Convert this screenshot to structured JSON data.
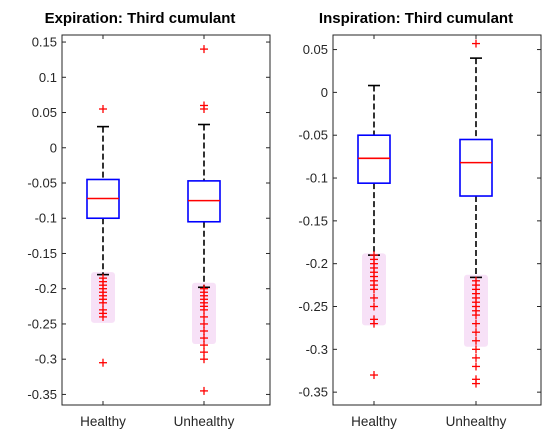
{
  "chart_data": [
    {
      "type": "boxplot",
      "title": "Expiration:  Third cumulant",
      "categories": [
        "Healthy",
        "Unhealthy"
      ],
      "ylim": [
        -0.365,
        0.16
      ],
      "yticks": [
        0.15,
        0.1,
        0.05,
        0,
        -0.05,
        -0.1,
        -0.15,
        -0.2,
        -0.25,
        -0.3,
        -0.35
      ],
      "ytick_labels": [
        "0.15",
        "0.1",
        "0.05",
        "0",
        "-0.05",
        "-0.1",
        "-0.15",
        "-0.2",
        "-0.25",
        "-0.3",
        "-0.35"
      ],
      "boxes": [
        {
          "category": "Healthy",
          "whisker_high": 0.03,
          "q3": -0.045,
          "median": -0.072,
          "q1": -0.1,
          "whisker_low": -0.18,
          "outliers": [
            0.055,
            -0.185,
            -0.19,
            -0.195,
            -0.2,
            -0.205,
            -0.21,
            -0.215,
            -0.22,
            -0.23,
            -0.235,
            -0.24,
            -0.305
          ]
        },
        {
          "category": "Unhealthy",
          "whisker_high": 0.033,
          "q3": -0.047,
          "median": -0.075,
          "q1": -0.105,
          "whisker_low": -0.198,
          "outliers": [
            0.14,
            0.06,
            0.055,
            -0.2,
            -0.205,
            -0.21,
            -0.215,
            -0.22,
            -0.225,
            -0.23,
            -0.24,
            -0.25,
            -0.26,
            -0.27,
            -0.28,
            -0.29,
            -0.3,
            -0.345
          ]
        }
      ],
      "colors": {
        "box": "#0000ff",
        "median": "#ff0000",
        "whisker": "#000000",
        "outlier": "#ff0000",
        "outlier_glow": "#f0c8f0"
      }
    },
    {
      "type": "boxplot",
      "title": "Inspiration:  Third cumulant",
      "categories": [
        "Healthy",
        "Unhealthy"
      ],
      "ylim": [
        -0.365,
        0.067
      ],
      "yticks": [
        0.05,
        0,
        -0.05,
        -0.1,
        -0.15,
        -0.2,
        -0.25,
        -0.3,
        -0.35
      ],
      "ytick_labels": [
        "0.05",
        "0",
        "-0.05",
        "-0.1",
        "-0.15",
        "-0.2",
        "-0.25",
        "-0.3",
        "-0.35"
      ],
      "boxes": [
        {
          "category": "Healthy",
          "whisker_high": 0.008,
          "q3": -0.05,
          "median": -0.077,
          "q1": -0.106,
          "whisker_low": -0.19,
          "outliers": [
            -0.19,
            -0.195,
            -0.2,
            -0.205,
            -0.21,
            -0.215,
            -0.22,
            -0.225,
            -0.23,
            -0.24,
            -0.25,
            -0.265,
            -0.27,
            -0.33
          ]
        },
        {
          "category": "Unhealthy",
          "whisker_high": 0.04,
          "q3": -0.055,
          "median": -0.082,
          "q1": -0.121,
          "whisker_low": -0.216,
          "outliers": [
            0.057,
            -0.22,
            -0.225,
            -0.23,
            -0.235,
            -0.24,
            -0.245,
            -0.25,
            -0.255,
            -0.26,
            -0.27,
            -0.28,
            -0.29,
            -0.3,
            -0.31,
            -0.32,
            -0.335,
            -0.34
          ]
        }
      ],
      "colors": {
        "box": "#0000ff",
        "median": "#ff0000",
        "whisker": "#000000",
        "outlier": "#ff0000",
        "outlier_glow": "#f0c8f0"
      }
    }
  ]
}
